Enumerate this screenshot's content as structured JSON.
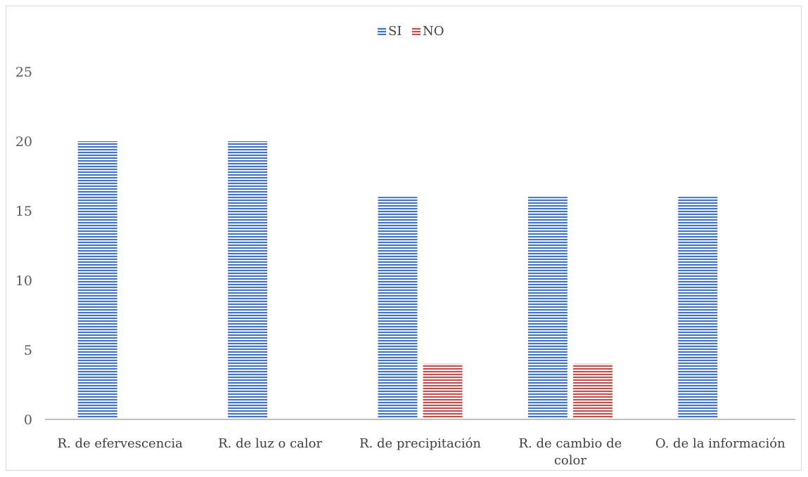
{
  "chart_data": {
    "type": "bar",
    "categories": [
      [
        "R.  de efervescencia"
      ],
      [
        "R. de luz o calor"
      ],
      [
        "R. de precipitación"
      ],
      [
        "R. de cambio de",
        "color"
      ],
      [
        "O. de la información"
      ]
    ],
    "series": [
      {
        "name": "SI",
        "values": [
          20,
          20,
          16,
          16,
          16
        ],
        "color": "#4472c4"
      },
      {
        "name": "NO",
        "values": [
          0,
          0,
          4,
          4,
          0
        ],
        "color": "#c0504d"
      }
    ],
    "yticks": [
      "0",
      "5",
      "10",
      "15",
      "20",
      "25"
    ],
    "ylim": [
      0,
      25
    ],
    "legend_position": "top-center",
    "grid": false,
    "pattern": "horizontal-stripes"
  }
}
